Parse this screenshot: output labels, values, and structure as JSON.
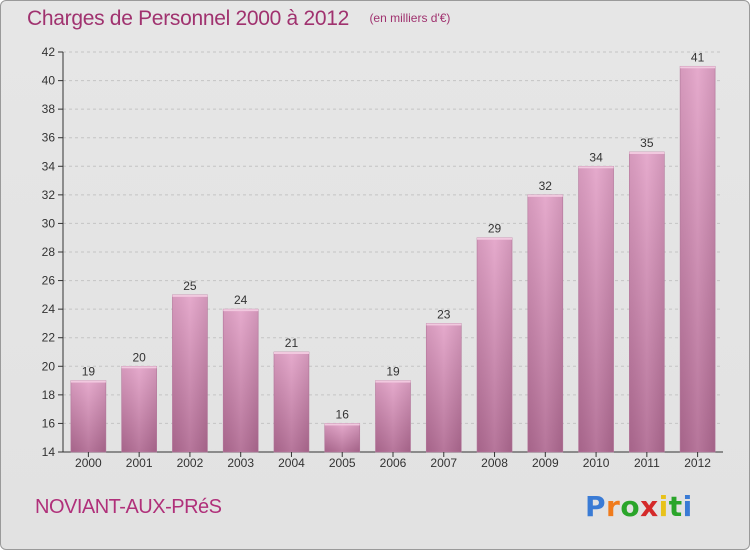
{
  "header": {
    "title": "Charges de Personnel 2000 à 2012",
    "subtitle": "(en milliers d'€)"
  },
  "footer": {
    "commune": "NOVIANT-AUX-PRéS",
    "logo_letters": [
      "P",
      "r",
      "o",
      "x",
      "i",
      "t",
      "i"
    ],
    "logo_colors": [
      "#3a7bd5",
      "#f07b1c",
      "#2aa52a",
      "#d42a2a",
      "#e8c21a",
      "#2aa52a",
      "#3a7bd5"
    ]
  },
  "colors": {
    "bar": "#d98bb6",
    "bar_dark": "#b06a92",
    "text": "#a0326f",
    "axis": "#333333"
  },
  "chart_data": {
    "type": "bar",
    "title": "Charges de Personnel 2000 à 2012",
    "subtitle": "(en milliers d'€)",
    "categories": [
      "2000",
      "2001",
      "2002",
      "2003",
      "2004",
      "2005",
      "2006",
      "2007",
      "2008",
      "2009",
      "2010",
      "2011",
      "2012"
    ],
    "values": [
      19,
      20,
      25,
      24,
      21,
      16,
      19,
      23,
      29,
      32,
      34,
      35,
      41
    ],
    "ylim": [
      14,
      42
    ],
    "yticks": [
      14,
      16,
      18,
      20,
      22,
      24,
      26,
      28,
      30,
      32,
      34,
      36,
      38,
      40,
      42
    ],
    "grid": true,
    "xlabel": "",
    "ylabel": ""
  }
}
